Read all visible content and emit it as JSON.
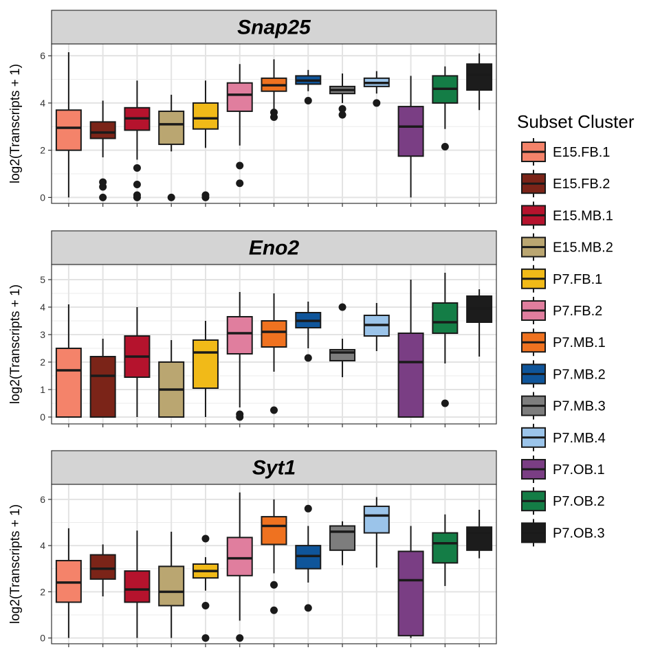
{
  "chart_data": {
    "type": "box",
    "ylabel": "log2(Transcripts + 1)",
    "grid": true,
    "legend_position": "right",
    "legend_title": "Subset Cluster",
    "categories": [
      "E15.FB.1",
      "E15.FB.2",
      "E15.MB.1",
      "E15.MB.2",
      "P7.FB.1",
      "P7.FB.2",
      "P7.MB.1",
      "P7.MB.2",
      "P7.MB.3",
      "P7.MB.4",
      "P7.OB.1",
      "P7.OB.2",
      "P7.OB.3"
    ],
    "colors": [
      "#F4836A",
      "#7B2418",
      "#B5132D",
      "#BAA671",
      "#F1BA18",
      "#E07E9E",
      "#EF7220",
      "#0F559A",
      "#7D7D7D",
      "#9BC4EA",
      "#7A3E84",
      "#147D46",
      "#1C1C1C"
    ],
    "panels": [
      {
        "title": "Snap25",
        "ylim": [
          -0.25,
          6.5
        ],
        "yticks": [
          0,
          2,
          4,
          6
        ],
        "boxes": [
          {
            "min": 0.0,
            "q1": 2.0,
            "median": 2.95,
            "q3": 3.7,
            "max": 6.15,
            "outliers": []
          },
          {
            "min": 1.7,
            "q1": 2.5,
            "median": 2.75,
            "q3": 3.2,
            "max": 4.1,
            "outliers": [
              0.0,
              0.45,
              0.65
            ]
          },
          {
            "min": 1.6,
            "q1": 2.85,
            "median": 3.35,
            "q3": 3.8,
            "max": 4.95,
            "outliers": [
              0.0,
              0.1,
              0.55,
              1.25
            ]
          },
          {
            "min": 1.95,
            "q1": 2.25,
            "median": 3.1,
            "q3": 3.65,
            "max": 4.35,
            "outliers": [
              0.0
            ]
          },
          {
            "min": 2.1,
            "q1": 2.9,
            "median": 3.35,
            "q3": 4.0,
            "max": 4.95,
            "outliers": [
              0.0,
              0.1
            ]
          },
          {
            "min": 2.2,
            "q1": 3.65,
            "median": 4.35,
            "q3": 4.85,
            "max": 5.65,
            "outliers": [
              0.6,
              1.35
            ]
          },
          {
            "min": 3.7,
            "q1": 4.5,
            "median": 4.75,
            "q3": 5.05,
            "max": 5.85,
            "outliers": [
              3.4,
              3.6
            ]
          },
          {
            "min": 4.5,
            "q1": 4.8,
            "median": 4.95,
            "q3": 5.15,
            "max": 5.4,
            "outliers": [
              4.1
            ]
          },
          {
            "min": 4.0,
            "q1": 4.4,
            "median": 4.55,
            "q3": 4.7,
            "max": 5.25,
            "outliers": [
              3.5,
              3.75
            ]
          },
          {
            "min": 4.4,
            "q1": 4.7,
            "median": 4.85,
            "q3": 5.05,
            "max": 5.35,
            "outliers": [
              4.0
            ]
          },
          {
            "min": 0.0,
            "q1": 1.75,
            "median": 3.0,
            "q3": 3.85,
            "max": 5.15,
            "outliers": []
          },
          {
            "min": 2.9,
            "q1": 4.0,
            "median": 4.6,
            "q3": 5.15,
            "max": 5.55,
            "outliers": [
              2.15
            ]
          },
          {
            "min": 3.7,
            "q1": 4.55,
            "median": 5.2,
            "q3": 5.65,
            "max": 6.1,
            "outliers": []
          }
        ]
      },
      {
        "title": "Eno2",
        "ylim": [
          -0.25,
          5.55
        ],
        "yticks": [
          0,
          1,
          2,
          3,
          4,
          5
        ],
        "boxes": [
          {
            "min": 0.0,
            "q1": 0.0,
            "median": 1.7,
            "q3": 2.5,
            "max": 4.1,
            "outliers": []
          },
          {
            "min": 0.0,
            "q1": 0.0,
            "median": 1.5,
            "q3": 2.2,
            "max": 2.85,
            "outliers": []
          },
          {
            "min": 0.0,
            "q1": 1.45,
            "median": 2.2,
            "q3": 2.95,
            "max": 4.0,
            "outliers": []
          },
          {
            "min": 0.0,
            "q1": 0.0,
            "median": 1.0,
            "q3": 2.0,
            "max": 2.8,
            "outliers": []
          },
          {
            "min": 0.0,
            "q1": 1.05,
            "median": 2.35,
            "q3": 2.8,
            "max": 3.5,
            "outliers": []
          },
          {
            "min": 0.35,
            "q1": 2.3,
            "median": 3.05,
            "q3": 3.65,
            "max": 4.55,
            "outliers": [
              0.0,
              0.1
            ]
          },
          {
            "min": 1.65,
            "q1": 2.55,
            "median": 3.1,
            "q3": 3.5,
            "max": 4.5,
            "outliers": [
              0.25
            ]
          },
          {
            "min": 2.5,
            "q1": 3.25,
            "median": 3.5,
            "q3": 3.8,
            "max": 4.2,
            "outliers": [
              2.15
            ]
          },
          {
            "min": 1.45,
            "q1": 2.05,
            "median": 2.35,
            "q3": 2.45,
            "max": 2.85,
            "outliers": [
              4.0
            ]
          },
          {
            "min": 2.4,
            "q1": 2.95,
            "median": 3.35,
            "q3": 3.7,
            "max": 4.15,
            "outliers": []
          },
          {
            "min": 0.0,
            "q1": 0.0,
            "median": 2.0,
            "q3": 3.05,
            "max": 5.0,
            "outliers": []
          },
          {
            "min": 1.95,
            "q1": 3.05,
            "median": 3.45,
            "q3": 4.15,
            "max": 5.25,
            "outliers": [
              0.5
            ]
          },
          {
            "min": 2.2,
            "q1": 3.45,
            "median": 3.95,
            "q3": 4.4,
            "max": 4.65,
            "outliers": []
          }
        ]
      },
      {
        "title": "Syt1",
        "ylim": [
          -0.25,
          6.65
        ],
        "yticks": [
          0,
          2,
          4,
          6
        ],
        "boxes": [
          {
            "min": 0.0,
            "q1": 1.55,
            "median": 2.4,
            "q3": 3.35,
            "max": 4.75,
            "outliers": []
          },
          {
            "min": 1.8,
            "q1": 2.55,
            "median": 3.0,
            "q3": 3.6,
            "max": 4.05,
            "outliers": []
          },
          {
            "min": 0.0,
            "q1": 1.55,
            "median": 2.1,
            "q3": 2.9,
            "max": 4.65,
            "outliers": []
          },
          {
            "min": 0.0,
            "q1": 1.4,
            "median": 2.0,
            "q3": 3.1,
            "max": 4.6,
            "outliers": []
          },
          {
            "min": 2.05,
            "q1": 2.6,
            "median": 2.9,
            "q3": 3.2,
            "max": 3.5,
            "outliers": [
              0.0,
              1.4,
              4.3
            ]
          },
          {
            "min": 0.75,
            "q1": 2.7,
            "median": 3.45,
            "q3": 4.35,
            "max": 6.3,
            "outliers": [
              0.0
            ]
          },
          {
            "min": 2.8,
            "q1": 4.05,
            "median": 4.85,
            "q3": 5.25,
            "max": 6.0,
            "outliers": [
              1.2,
              2.3
            ]
          },
          {
            "min": 2.4,
            "q1": 3.0,
            "median": 3.55,
            "q3": 4.0,
            "max": 4.85,
            "outliers": [
              1.3,
              5.6
            ]
          },
          {
            "min": 3.15,
            "q1": 3.8,
            "median": 4.6,
            "q3": 4.85,
            "max": 5.05,
            "outliers": []
          },
          {
            "min": 3.05,
            "q1": 4.55,
            "median": 5.3,
            "q3": 5.7,
            "max": 6.1,
            "outliers": []
          },
          {
            "min": 0.0,
            "q1": 0.1,
            "median": 2.5,
            "q3": 3.75,
            "max": 4.85,
            "outliers": []
          },
          {
            "min": 2.25,
            "q1": 3.25,
            "median": 4.1,
            "q3": 4.55,
            "max": 5.35,
            "outliers": []
          },
          {
            "min": 3.45,
            "q1": 3.8,
            "median": 4.55,
            "q3": 4.8,
            "max": 5.55,
            "outliers": []
          }
        ]
      }
    ]
  }
}
